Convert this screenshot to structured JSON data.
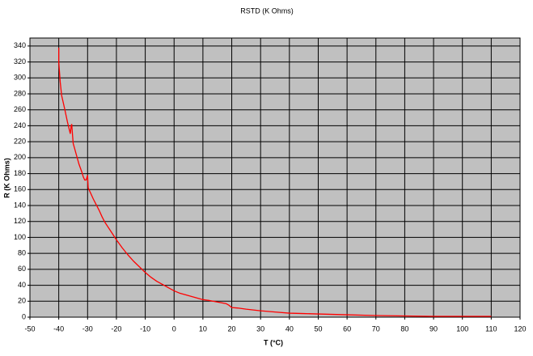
{
  "chart_data": {
    "type": "line",
    "title": "RSTD (K Ohms)",
    "x_label": "T (°C)",
    "y_label": "R (K Ohms)",
    "x": [
      -40,
      -40,
      -39.5,
      -39,
      -38,
      -37,
      -36,
      -35.7,
      -35.5,
      -35.3,
      -35,
      -34,
      -33,
      -32,
      -31.5,
      -31,
      -30.5,
      -30,
      -29.8,
      -29,
      -28,
      -26,
      -25,
      -24,
      -22,
      -20,
      -18,
      -16,
      -14,
      -12,
      -10,
      -8,
      -6,
      -4,
      -2,
      0,
      2,
      5,
      8,
      10,
      12,
      15,
      18,
      19,
      20,
      22,
      25,
      30,
      35,
      40,
      45,
      50,
      55,
      60,
      70,
      80,
      90,
      100,
      110
    ],
    "series": [
      {
        "name": "RSTD (K Ohms)",
        "color": "#ff0000",
        "values": [
          338,
          320,
          295,
          278,
          262,
          245,
          230,
          240,
          242,
          232,
          218,
          205,
          192,
          182,
          176,
          172,
          172,
          178,
          162,
          156,
          148,
          134,
          126,
          119,
          108,
          97,
          87,
          78,
          70,
          63,
          56,
          50,
          45,
          41,
          37,
          33,
          30,
          27,
          24,
          22,
          21,
          19,
          17,
          15,
          12,
          11.5,
          10,
          8,
          6.5,
          5,
          4.5,
          4,
          3.5,
          3,
          2,
          1.5,
          1,
          1,
          1
        ]
      }
    ],
    "xlim": [
      -50,
      120
    ],
    "xticks": [
      -50,
      -40,
      -30,
      -20,
      -10,
      0,
      10,
      20,
      30,
      40,
      50,
      60,
      70,
      80,
      90,
      100,
      110,
      120
    ],
    "ylim": [
      0,
      350
    ],
    "yticks": [
      0,
      20,
      40,
      60,
      80,
      100,
      120,
      140,
      160,
      180,
      200,
      220,
      240,
      260,
      280,
      300,
      320,
      340
    ],
    "grid": true,
    "plot_background": "#c0c0c0"
  }
}
